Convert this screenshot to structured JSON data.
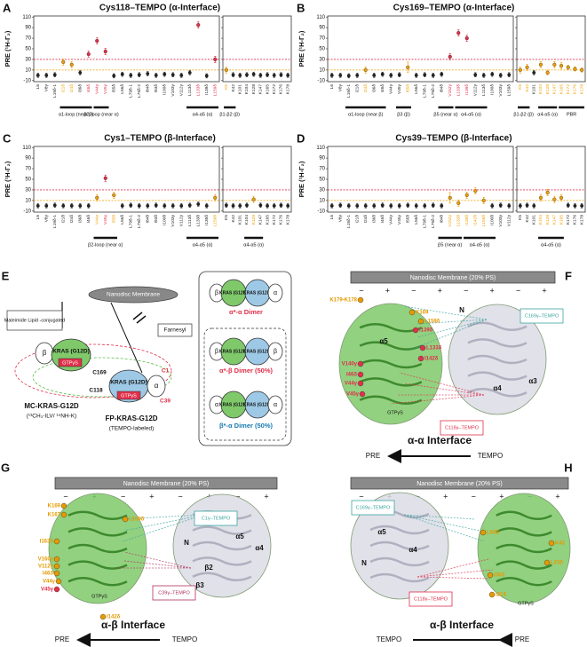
{
  "chart_data": [
    {
      "type": "scatter",
      "panel": "A",
      "title": "Cys118–TEMPO (α-Interface)",
      "ylabel": "PRE (¹H-Γ₂)",
      "ylim": [
        -12,
        112
      ],
      "yticks": [
        -10,
        10,
        30,
        50,
        70,
        90,
        110
      ],
      "thresholds": [
        {
          "value": 30,
          "color": "#e0304a"
        },
        {
          "value": 10,
          "color": "#f0a000"
        }
      ],
      "subplots": [
        {
          "categories": [
            "L6",
            "V8γ",
            "L19δ-1",
            "I21δ",
            "I24δ",
            "I36δ",
            "I46δ",
            "V44γ",
            "V45γ",
            "I55δ",
            "L56δ",
            "L79δ-1",
            "L79δ-2",
            "I84δ",
            "I93δ",
            "I100δ",
            "V103γ",
            "V112γ",
            "L113δ",
            "L133δ",
            "I139δ",
            "L159δ"
          ],
          "values": [
            0,
            0,
            1,
            25,
            20,
            5,
            40,
            65,
            45,
            -1,
            2,
            0,
            1,
            3,
            0,
            2,
            1,
            0,
            5,
            95,
            -1,
            30
          ],
          "errors": [
            4,
            4,
            4,
            6,
            6,
            4,
            6,
            6,
            6,
            4,
            4,
            4,
            4,
            4,
            4,
            4,
            4,
            4,
            4,
            6,
            4,
            6
          ],
          "colors": [
            "#222",
            "#222",
            "#222",
            "#f0a000",
            "#f0a000",
            "#222",
            "#e0304a",
            "#e0304a",
            "#e0304a",
            "#222",
            "#222",
            "#222",
            "#222",
            "#222",
            "#222",
            "#222",
            "#222",
            "#222",
            "#222",
            "#e0304a",
            "#222",
            "#e0304a"
          ],
          "groups": [
            {
              "label": "α1-loop (near β)",
              "start": 3,
              "end": 6
            },
            {
              "label": "β2-loop (near α)",
              "start": 7,
              "end": 8
            },
            {
              "label": "α4-α5 (α)",
              "start": 18,
              "end": 21
            }
          ]
        },
        {
          "categories": [
            "K5",
            "K42",
            "K101",
            "K104",
            "K128",
            "K147",
            "K165",
            "K172",
            "K176",
            "K178"
          ],
          "values": [
            10,
            1,
            0,
            1,
            2,
            0,
            1,
            0,
            1,
            0
          ],
          "errors": [
            6,
            4,
            4,
            4,
            4,
            4,
            4,
            4,
            4,
            4
          ],
          "colors": [
            "#f0a000",
            "#222",
            "#222",
            "#222",
            "#222",
            "#222",
            "#222",
            "#222",
            "#222",
            "#222"
          ],
          "groups": [
            {
              "label": "β1-β2 (β)",
              "start": 0,
              "end": 1
            }
          ]
        }
      ]
    },
    {
      "type": "scatter",
      "panel": "B",
      "title": "Cys169–TEMPO (α-Interface)",
      "ylabel": "PRE (¹H-Γ₂)",
      "ylim": [
        -12,
        112
      ],
      "yticks": [
        -10,
        10,
        30,
        50,
        70,
        90,
        110
      ],
      "thresholds": [
        {
          "value": 30,
          "color": "#e0304a"
        },
        {
          "value": 10,
          "color": "#f0a000"
        }
      ],
      "subplots": [
        {
          "categories": [
            "L6",
            "V8γ",
            "L19δ-1",
            "I21δ",
            "I24δ",
            "I36δ",
            "I46δ",
            "V44γ",
            "V45γ",
            "I55δ",
            "L56δ",
            "L79δ-1",
            "L79δ-2",
            "I84δ",
            "V152γ",
            "L133δ",
            "I139δ",
            "V112γ",
            "L113δ",
            "I100δ",
            "V103γ",
            "L159δ"
          ],
          "values": [
            0,
            0,
            -1,
            0,
            10,
            0,
            2,
            0,
            1,
            15,
            0,
            1,
            0,
            2,
            35,
            80,
            70,
            1,
            0,
            2,
            0,
            1
          ],
          "errors": [
            4,
            4,
            4,
            4,
            6,
            4,
            4,
            4,
            4,
            10,
            4,
            4,
            4,
            4,
            6,
            6,
            6,
            4,
            4,
            4,
            4,
            4
          ],
          "colors": [
            "#222",
            "#222",
            "#222",
            "#222",
            "#f0a000",
            "#222",
            "#222",
            "#222",
            "#222",
            "#f0a000",
            "#222",
            "#222",
            "#222",
            "#222",
            "#e0304a",
            "#e0304a",
            "#e0304a",
            "#222",
            "#222",
            "#222",
            "#222",
            "#222"
          ],
          "groups": [
            {
              "label": "α1-loop (near β)",
              "start": 2,
              "end": 6
            },
            {
              "label": "β3 (β)",
              "start": 8,
              "end": 9
            },
            {
              "label": "β5 (near α)",
              "start": 13,
              "end": 14
            },
            {
              "label": "α4-α5 (α)",
              "start": 15,
              "end": 18
            }
          ]
        },
        {
          "categories": [
            "K5",
            "K42",
            "K101",
            "K104",
            "K128",
            "K147",
            "K165",
            "K172",
            "K176",
            "K178"
          ],
          "values": [
            10,
            15,
            5,
            20,
            5,
            20,
            18,
            15,
            12,
            10
          ],
          "errors": [
            6,
            6,
            4,
            6,
            4,
            6,
            6,
            4,
            4,
            4
          ],
          "colors": [
            "#f0a000",
            "#f0a000",
            "#222",
            "#f0a000",
            "#f0a000",
            "#f0a000",
            "#f0a000",
            "#f0a000",
            "#f0a000",
            "#f0a000"
          ],
          "groups": [
            {
              "label": "β1-β2 (β)",
              "start": 0,
              "end": 1
            },
            {
              "label": "α4-α5 (α)",
              "start": 3,
              "end": 5
            },
            {
              "label": "PBR",
              "start": 6,
              "end": 9
            }
          ]
        }
      ]
    },
    {
      "type": "scatter",
      "panel": "C",
      "title": "Cys1–TEMPO (β-Interface)",
      "ylabel": "PRE (¹H-Γ₂)",
      "ylim": [
        -12,
        112
      ],
      "yticks": [
        -10,
        10,
        30,
        50,
        70,
        90,
        110
      ],
      "thresholds": [
        {
          "value": 30,
          "color": "#e0304a"
        },
        {
          "value": 10,
          "color": "#f0a000"
        }
      ],
      "subplots": [
        {
          "categories": [
            "L6",
            "V8γ",
            "L19δ-1",
            "I21δ",
            "I24δ",
            "I36δ",
            "I46δ",
            "V44γ",
            "V45γ",
            "I55δ",
            "L56δ",
            "L79δ-1",
            "L79δ-2",
            "I84δ",
            "I93δ",
            "I100δ",
            "V103γ",
            "V112γ",
            "L113δ",
            "L133δ",
            "I139δ",
            "L159δ"
          ],
          "values": [
            0,
            0,
            1,
            0,
            0,
            0,
            0,
            15,
            52,
            20,
            0,
            1,
            0,
            0,
            1,
            0,
            0,
            0,
            1,
            3,
            0,
            15
          ],
          "errors": [
            4,
            4,
            4,
            4,
            4,
            4,
            4,
            6,
            6,
            6,
            4,
            4,
            4,
            4,
            4,
            4,
            4,
            4,
            4,
            4,
            4,
            6
          ],
          "colors": [
            "#222",
            "#222",
            "#222",
            "#222",
            "#222",
            "#222",
            "#222",
            "#f0a000",
            "#e0304a",
            "#f0a000",
            "#222",
            "#222",
            "#222",
            "#222",
            "#222",
            "#222",
            "#222",
            "#222",
            "#222",
            "#222",
            "#222",
            "#f0a000"
          ],
          "groups": [
            {
              "label": "β2-loop (near α)",
              "start": 7,
              "end": 9
            },
            {
              "label": "α4-α5 (α)",
              "start": 18,
              "end": 21
            }
          ]
        },
        {
          "categories": [
            "K5",
            "K42",
            "K101",
            "K104",
            "K128",
            "K147",
            "K165",
            "K172",
            "K176",
            "K178"
          ],
          "values": [
            1,
            0,
            0,
            1,
            12,
            1,
            0,
            0,
            1,
            0
          ],
          "errors": [
            4,
            4,
            4,
            4,
            6,
            4,
            4,
            4,
            4,
            4
          ],
          "colors": [
            "#222",
            "#222",
            "#222",
            "#222",
            "#f0a000",
            "#222",
            "#222",
            "#222",
            "#222",
            "#222"
          ],
          "groups": [
            {
              "label": "α4-α5 (α)",
              "start": 3,
              "end": 5
            }
          ]
        }
      ]
    },
    {
      "type": "scatter",
      "panel": "D",
      "title": "Cys39–TEMPO (β-Interface)",
      "ylabel": "PRE (¹H-Γ₂)",
      "ylim": [
        -12,
        112
      ],
      "yticks": [
        -10,
        10,
        30,
        50,
        70,
        90,
        110
      ],
      "thresholds": [
        {
          "value": 30,
          "color": "#e0304a"
        },
        {
          "value": 10,
          "color": "#f0a000"
        }
      ],
      "subplots": [
        {
          "categories": [
            "L6",
            "V8γ",
            "L19δ-1",
            "I21δ",
            "I24δ",
            "I36δ",
            "I46δ",
            "V44γ",
            "V45γ",
            "I55δ",
            "L56δ",
            "L79δ-1",
            "L79δ-2",
            "I84δ",
            "V152γ",
            "L133δ",
            "I139δ",
            "I142δ",
            "L159δ",
            "I100δ",
            "V103γ",
            "V112γ"
          ],
          "values": [
            0,
            1,
            0,
            0,
            0,
            0,
            1,
            0,
            0,
            1,
            0,
            0,
            1,
            0,
            15,
            5,
            20,
            28,
            10,
            0,
            1,
            0
          ],
          "errors": [
            4,
            4,
            4,
            4,
            4,
            4,
            4,
            4,
            4,
            4,
            4,
            4,
            4,
            4,
            10,
            6,
            6,
            6,
            6,
            4,
            4,
            4
          ],
          "colors": [
            "#222",
            "#222",
            "#222",
            "#222",
            "#222",
            "#222",
            "#222",
            "#222",
            "#222",
            "#222",
            "#222",
            "#222",
            "#222",
            "#222",
            "#f0a000",
            "#f0a000",
            "#f0a000",
            "#f0a000",
            "#f0a000",
            "#222",
            "#222",
            "#222"
          ],
          "groups": [
            {
              "label": "β5 (near α)",
              "start": 13,
              "end": 15
            },
            {
              "label": "α4-α5 (α)",
              "start": 16,
              "end": 19
            }
          ]
        },
        {
          "categories": [
            "K5",
            "K42",
            "K101",
            "K104",
            "K128",
            "K147",
            "K165",
            "K172",
            "K176",
            "K178"
          ],
          "values": [
            0,
            1,
            0,
            15,
            25,
            12,
            15,
            1,
            0,
            0
          ],
          "errors": [
            4,
            4,
            4,
            6,
            6,
            6,
            6,
            4,
            4,
            4
          ],
          "colors": [
            "#222",
            "#222",
            "#222",
            "#f0a000",
            "#f0a000",
            "#f0a000",
            "#f0a000",
            "#222",
            "#222",
            "#222"
          ],
          "groups": [
            {
              "label": "α4-α5 (α)",
              "start": 3,
              "end": 6
            }
          ]
        }
      ]
    }
  ],
  "diagrams": {
    "E": {
      "panel": "E",
      "membrane": "Nanodisc Membrane",
      "maleimide": "Maleimide Lipid -conjugated",
      "farnesyl": "Farnesyl",
      "protein": "KRAS (G12D)",
      "gtp": "GTPγS",
      "alpha": "α",
      "beta": "β",
      "cysteines": [
        "C169",
        "C118",
        "C1",
        "C39"
      ],
      "mc": "MC-KRAS-G12D",
      "mc_sub": "(¹³CH₃-ILV/ ¹⁵NH-K)",
      "fp": "FP-KRAS-G12D",
      "fp_sub": "(TEMPO-labeled)",
      "dimers": [
        "α*-α Dimer",
        "α*-β Dimer (50%)",
        "β*-α Dimer (50%)"
      ]
    },
    "F": {
      "panel": "F",
      "membrane": "Nanodisc Membrane (20% PS)",
      "residues": [
        "K179-K178",
        "K169",
        "L159δ",
        "I139δ",
        "L133δ",
        "I142δ",
        "V140γ",
        "I46δ",
        "V44γ",
        "V45γ"
      ],
      "gtp": "GTPγS",
      "domains": [
        "α5",
        "α4",
        "α3",
        "N"
      ],
      "tempo": [
        "C169γ–TEMPO",
        "C118γ–TEMPO"
      ],
      "interface": "α-α Interface",
      "pre": "PRE",
      "tempo_label": "TEMPO"
    },
    "G": {
      "panel": "G",
      "membrane": "Nanodisc Membrane (20% PS)",
      "residues": [
        "K169",
        "K167",
        "L159δ",
        "I163δ",
        "V160γ",
        "V112γ",
        "I46δ",
        "V44γ",
        "V45γ",
        "I142δ"
      ],
      "gtp": "GTPγS",
      "domains": [
        "α5",
        "α4",
        "N",
        "β2",
        "β3"
      ],
      "tempo": [
        "C1γ–TEMPO",
        "C39γ–TEMPO"
      ],
      "interface": "α-β Interface",
      "pre": "PRE",
      "tempo_label": "TEMPO"
    },
    "H": {
      "panel": "H",
      "membrane": "Nanodisc Membrane (20% PS)",
      "residues": [
        "L56δ",
        "K42",
        "L23δ",
        "I36δ",
        "I21δ"
      ],
      "gtp": "GTPγS",
      "domains": [
        "α5",
        "α4",
        "N"
      ],
      "tempo": [
        "C169γ–TEMPO",
        "C118γ–TEMPO"
      ],
      "interface": "α-β Interface",
      "pre": "PRE",
      "tempo_label": "TEMPO"
    }
  }
}
